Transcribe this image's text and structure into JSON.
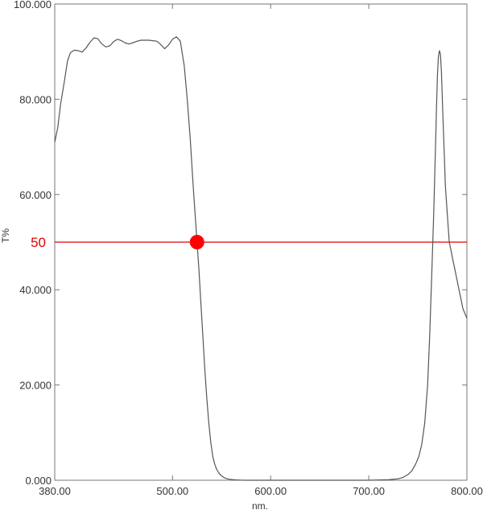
{
  "chart_data": {
    "type": "line",
    "xlabel": "nm.",
    "ylabel": "T%",
    "xlim": [
      380,
      800
    ],
    "ylim": [
      0,
      100
    ],
    "x_ticks": [
      380,
      500,
      600,
      700,
      800
    ],
    "x_tick_labels": [
      "380.00",
      "500.00",
      "600.00",
      "700.00",
      "800.00"
    ],
    "y_ticks": [
      0,
      20,
      40,
      60,
      80,
      100
    ],
    "y_tick_labels": [
      "0.000",
      "20.000",
      "40.000",
      "60.000",
      "80.000",
      "100.000"
    ],
    "grid": false,
    "series": [
      {
        "color": "#555555",
        "x": [
          380,
          383,
          386,
          390,
          393,
          396,
          400,
          404,
          408,
          412,
          416,
          420,
          424,
          428,
          432,
          436,
          440,
          444,
          448,
          452,
          456,
          460,
          464,
          468,
          472,
          476,
          480,
          484,
          488,
          492,
          496,
          500,
          504,
          508,
          512,
          515,
          518,
          521,
          523,
          525,
          527,
          529,
          531,
          533,
          535,
          537,
          539,
          541,
          543,
          545,
          547,
          549,
          552,
          555,
          558,
          562,
          566,
          570,
          575,
          580,
          590,
          600,
          650,
          700,
          720,
          730,
          735,
          740,
          744,
          748,
          751,
          754,
          757,
          760,
          762,
          764,
          766,
          768,
          769,
          770,
          771,
          772,
          773,
          774,
          775,
          776,
          777,
          778,
          780,
          782,
          784,
          786,
          788,
          790,
          792,
          794,
          796,
          798,
          800
        ],
        "y": [
          71,
          74,
          79,
          84,
          88,
          89.8,
          90.3,
          90.2,
          89.9,
          90.8,
          92,
          92.9,
          92.7,
          91.6,
          91,
          91.2,
          92.1,
          92.6,
          92.3,
          91.8,
          91.6,
          91.9,
          92.2,
          92.4,
          92.4,
          92.4,
          92.3,
          92.2,
          91.5,
          90.6,
          91.4,
          92.6,
          93.1,
          92.2,
          87,
          80,
          72,
          62,
          56,
          50,
          44,
          37,
          30,
          23,
          17,
          12,
          8,
          5,
          3.4,
          2.3,
          1.6,
          1.1,
          0.6,
          0.35,
          0.2,
          0.1,
          0.05,
          0.02,
          0,
          0,
          0,
          0,
          0,
          0,
          0.1,
          0.3,
          0.6,
          1.2,
          2,
          3.5,
          5,
          7.5,
          12,
          20,
          30,
          42,
          55,
          70,
          78,
          85,
          89,
          90.2,
          89.5,
          86,
          80,
          74,
          68,
          62,
          56,
          50,
          48,
          46,
          44,
          42,
          40,
          38,
          36,
          35,
          34
        ]
      }
    ],
    "reference_line": {
      "y": 50,
      "label": "50",
      "color": "#e00000"
    },
    "marker_point": {
      "x": 525,
      "y": 50,
      "color": "#ff0000"
    }
  }
}
